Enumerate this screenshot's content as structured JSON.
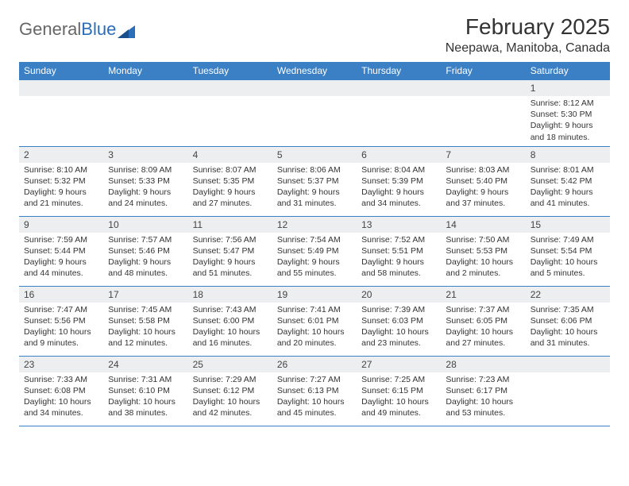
{
  "logo": {
    "text1": "General",
    "text2": "Blue"
  },
  "title": "February 2025",
  "location": "Neepawa, Manitoba, Canada",
  "colors": {
    "header_bg": "#3b7fc4",
    "header_text": "#ffffff",
    "daynum_bg": "#eceeef",
    "border": "#3b7fc4",
    "logo_blue": "#2a6db8",
    "logo_gray": "#666666",
    "text": "#333333",
    "background": "#ffffff"
  },
  "fonts": {
    "title_size_pt": 21,
    "location_size_pt": 12,
    "header_size_pt": 9,
    "body_size_pt": 8,
    "logo_size_pt": 16
  },
  "weekdays": [
    "Sunday",
    "Monday",
    "Tuesday",
    "Wednesday",
    "Thursday",
    "Friday",
    "Saturday"
  ],
  "grid": {
    "columns": 7,
    "rows": 5,
    "first_day_column_index": 6,
    "days_in_month": 28
  },
  "days": [
    {
      "n": 1,
      "sunrise": "8:12 AM",
      "sunset": "5:30 PM",
      "daylight": "9 hours and 18 minutes."
    },
    {
      "n": 2,
      "sunrise": "8:10 AM",
      "sunset": "5:32 PM",
      "daylight": "9 hours and 21 minutes."
    },
    {
      "n": 3,
      "sunrise": "8:09 AM",
      "sunset": "5:33 PM",
      "daylight": "9 hours and 24 minutes."
    },
    {
      "n": 4,
      "sunrise": "8:07 AM",
      "sunset": "5:35 PM",
      "daylight": "9 hours and 27 minutes."
    },
    {
      "n": 5,
      "sunrise": "8:06 AM",
      "sunset": "5:37 PM",
      "daylight": "9 hours and 31 minutes."
    },
    {
      "n": 6,
      "sunrise": "8:04 AM",
      "sunset": "5:39 PM",
      "daylight": "9 hours and 34 minutes."
    },
    {
      "n": 7,
      "sunrise": "8:03 AM",
      "sunset": "5:40 PM",
      "daylight": "9 hours and 37 minutes."
    },
    {
      "n": 8,
      "sunrise": "8:01 AM",
      "sunset": "5:42 PM",
      "daylight": "9 hours and 41 minutes."
    },
    {
      "n": 9,
      "sunrise": "7:59 AM",
      "sunset": "5:44 PM",
      "daylight": "9 hours and 44 minutes."
    },
    {
      "n": 10,
      "sunrise": "7:57 AM",
      "sunset": "5:46 PM",
      "daylight": "9 hours and 48 minutes."
    },
    {
      "n": 11,
      "sunrise": "7:56 AM",
      "sunset": "5:47 PM",
      "daylight": "9 hours and 51 minutes."
    },
    {
      "n": 12,
      "sunrise": "7:54 AM",
      "sunset": "5:49 PM",
      "daylight": "9 hours and 55 minutes."
    },
    {
      "n": 13,
      "sunrise": "7:52 AM",
      "sunset": "5:51 PM",
      "daylight": "9 hours and 58 minutes."
    },
    {
      "n": 14,
      "sunrise": "7:50 AM",
      "sunset": "5:53 PM",
      "daylight": "10 hours and 2 minutes."
    },
    {
      "n": 15,
      "sunrise": "7:49 AM",
      "sunset": "5:54 PM",
      "daylight": "10 hours and 5 minutes."
    },
    {
      "n": 16,
      "sunrise": "7:47 AM",
      "sunset": "5:56 PM",
      "daylight": "10 hours and 9 minutes."
    },
    {
      "n": 17,
      "sunrise": "7:45 AM",
      "sunset": "5:58 PM",
      "daylight": "10 hours and 12 minutes."
    },
    {
      "n": 18,
      "sunrise": "7:43 AM",
      "sunset": "6:00 PM",
      "daylight": "10 hours and 16 minutes."
    },
    {
      "n": 19,
      "sunrise": "7:41 AM",
      "sunset": "6:01 PM",
      "daylight": "10 hours and 20 minutes."
    },
    {
      "n": 20,
      "sunrise": "7:39 AM",
      "sunset": "6:03 PM",
      "daylight": "10 hours and 23 minutes."
    },
    {
      "n": 21,
      "sunrise": "7:37 AM",
      "sunset": "6:05 PM",
      "daylight": "10 hours and 27 minutes."
    },
    {
      "n": 22,
      "sunrise": "7:35 AM",
      "sunset": "6:06 PM",
      "daylight": "10 hours and 31 minutes."
    },
    {
      "n": 23,
      "sunrise": "7:33 AM",
      "sunset": "6:08 PM",
      "daylight": "10 hours and 34 minutes."
    },
    {
      "n": 24,
      "sunrise": "7:31 AM",
      "sunset": "6:10 PM",
      "daylight": "10 hours and 38 minutes."
    },
    {
      "n": 25,
      "sunrise": "7:29 AM",
      "sunset": "6:12 PM",
      "daylight": "10 hours and 42 minutes."
    },
    {
      "n": 26,
      "sunrise": "7:27 AM",
      "sunset": "6:13 PM",
      "daylight": "10 hours and 45 minutes."
    },
    {
      "n": 27,
      "sunrise": "7:25 AM",
      "sunset": "6:15 PM",
      "daylight": "10 hours and 49 minutes."
    },
    {
      "n": 28,
      "sunrise": "7:23 AM",
      "sunset": "6:17 PM",
      "daylight": "10 hours and 53 minutes."
    }
  ],
  "labels": {
    "sunrise": "Sunrise:",
    "sunset": "Sunset:",
    "daylight": "Daylight:"
  }
}
